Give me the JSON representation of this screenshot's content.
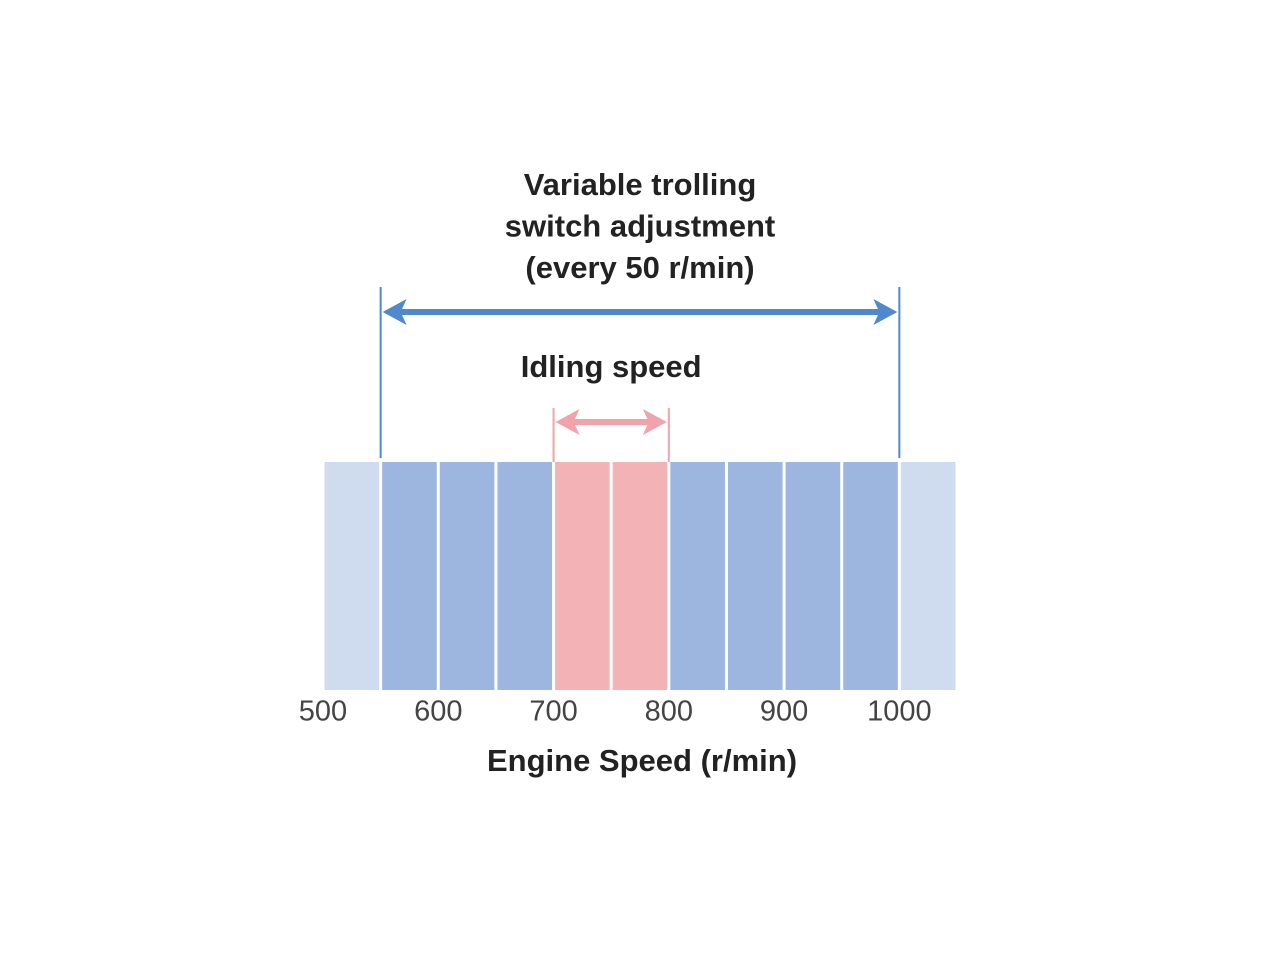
{
  "chart_data": {
    "type": "segments",
    "xlabel": "Engine Speed (r/min)",
    "xlim": [
      500,
      1050
    ],
    "xticks": [
      500,
      600,
      700,
      800,
      900,
      1000
    ],
    "bins": [
      500,
      550,
      600,
      650,
      700,
      750,
      800,
      850,
      900,
      950,
      1000,
      1050
    ],
    "base_color": "#cfdbee",
    "ranges": [
      {
        "label": [
          "Variable trolling",
          "switch adjustment",
          "(every 50 r/min)"
        ],
        "from": 550,
        "to": 1000,
        "color": "#4f88cc",
        "fill": "#9db6e0"
      },
      {
        "label": [
          "Idling speed"
        ],
        "from": 700,
        "to": 800,
        "color": "#f0a3aa",
        "fill": "#f3b2b6"
      }
    ]
  }
}
